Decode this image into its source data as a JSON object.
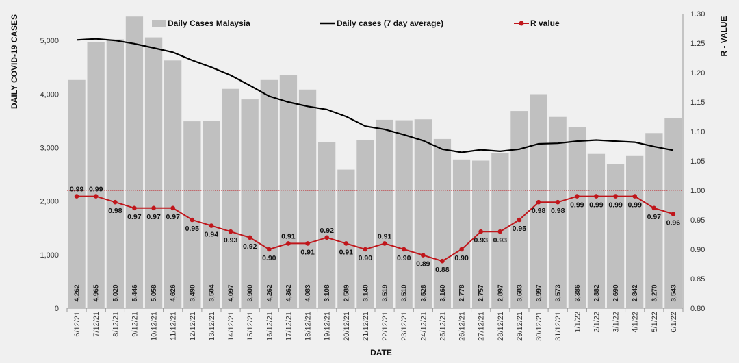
{
  "chart_data": {
    "type": "bar",
    "xlabel": "DATE",
    "ylabel": "DAILY COVID-19 CASES",
    "y2label": "R - VALUE",
    "ylim": [
      0,
      5500
    ],
    "y2lim": [
      0.8,
      1.3
    ],
    "yticks": [
      "0",
      "1,000",
      "2,000",
      "3,000",
      "4,000",
      "5,000"
    ],
    "y2ticks": [
      "0.80",
      "0.85",
      "0.90",
      "0.95",
      "1.00",
      "1.05",
      "1.10",
      "1.15",
      "1.20",
      "1.25",
      "1.30"
    ],
    "reference_line": 1.0,
    "legend_position": "top",
    "categories": [
      "6/12/21",
      "7/12/21",
      "8/12/21",
      "9/12/21",
      "10/12/21",
      "11/12/21",
      "12/12/21",
      "13/12/21",
      "14/12/21",
      "15/12/21",
      "16/12/21",
      "17/12/21",
      "18/12/21",
      "19/12/21",
      "20/12/21",
      "21/12/21",
      "22/12/21",
      "23/12/21",
      "24/12/21",
      "25/12/21",
      "26/12/21",
      "27/12/21",
      "28/12/21",
      "29/12/21",
      "30/12/21",
      "31/12/21",
      "1/1/22",
      "2/1/22",
      "3/1/22",
      "4/1/22",
      "5/1/22",
      "6/1/22"
    ],
    "series": [
      {
        "name": "Daily Cases Malaysia",
        "type": "bar",
        "color": "#c0c0c0",
        "values": [
          4262,
          4965,
          5020,
          5446,
          5058,
          4626,
          3490,
          3504,
          4097,
          3900,
          4262,
          4362,
          4083,
          3108,
          2589,
          3140,
          3519,
          3510,
          3528,
          3160,
          2778,
          2757,
          2897,
          3683,
          3997,
          3573,
          3386,
          2882,
          2690,
          2842,
          3270,
          3543
        ],
        "labels": [
          "4,262",
          "4,965",
          "5,020",
          "5,446",
          "5,058",
          "4,626",
          "3,490",
          "3,504",
          "4,097",
          "3,900",
          "4,262",
          "4,362",
          "4,083",
          "3,108",
          "2,589",
          "3,140",
          "3,519",
          "3,510",
          "3,528",
          "3,160",
          "2,778",
          "2,757",
          "2,897",
          "3,683",
          "3,997",
          "3,573",
          "3,386",
          "2,882",
          "2,690",
          "2,842",
          "3,270",
          "3,543"
        ]
      },
      {
        "name": "Daily cases (7 day average)",
        "type": "line",
        "color": "#000000",
        "values": [
          5010,
          5030,
          5000,
          4940,
          4860,
          4780,
          4630,
          4500,
          4350,
          4160,
          3960,
          3850,
          3770,
          3710,
          3580,
          3400,
          3340,
          3240,
          3130,
          2970,
          2910,
          2960,
          2930,
          2970,
          3070,
          3080,
          3120,
          3140,
          3120,
          3100,
          3020,
          2950
        ]
      },
      {
        "name": "R value",
        "type": "line",
        "axis": "right",
        "color": "#c0161b",
        "values": [
          0.99,
          0.99,
          0.98,
          0.97,
          0.97,
          0.97,
          0.95,
          0.94,
          0.93,
          0.92,
          0.9,
          0.91,
          0.91,
          0.92,
          0.91,
          0.9,
          0.91,
          0.9,
          0.89,
          0.88,
          0.9,
          0.93,
          0.93,
          0.95,
          0.98,
          0.98,
          0.99,
          0.99,
          0.99,
          0.99,
          0.97,
          0.96
        ],
        "labels": [
          "0.99",
          "0.99",
          "0.98",
          "0.97",
          "0.97",
          "0.97",
          "0.95",
          "0.94",
          "0.93",
          "0.92",
          "0.90",
          "0.91",
          "0.91",
          "0.92",
          "0.91",
          "0.90",
          "0.91",
          "0.90",
          "0.89",
          "0.88",
          "0.90",
          "0.93",
          "0.93",
          "0.95",
          "0.98",
          "0.98",
          "0.99",
          "0.99",
          "0.99",
          "0.99",
          "0.97",
          "0.96"
        ]
      }
    ]
  }
}
